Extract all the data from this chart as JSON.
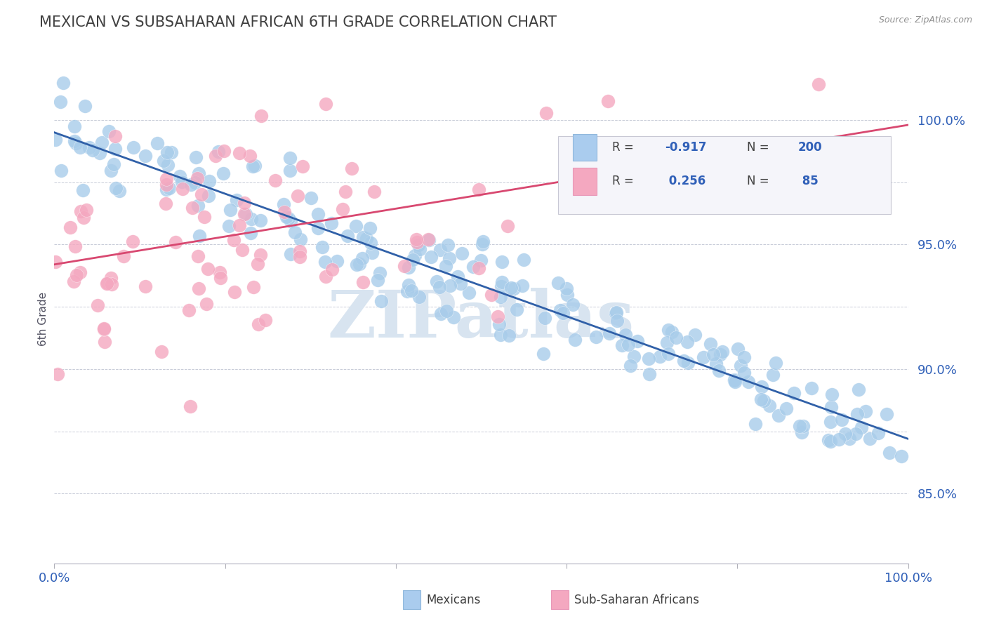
{
  "title": "MEXICAN VS SUBSAHARAN AFRICAN 6TH GRADE CORRELATION CHART",
  "source": "Source: ZipAtlas.com",
  "ylabel": "6th Grade",
  "blue_R": -0.917,
  "blue_N": 200,
  "pink_R": 0.256,
  "pink_N": 85,
  "blue_color": "#A8CCEA",
  "pink_color": "#F4A8C0",
  "blue_line_color": "#3060A8",
  "pink_line_color": "#D84870",
  "legend_blue_box": "#AACCEE",
  "legend_pink_box": "#F4A8C0",
  "title_color": "#404040",
  "axis_label_color": "#3060B8",
  "watermark_color": "#D8E4F0",
  "blue_trend_y0": 0.995,
  "blue_trend_y1": 0.872,
  "pink_trend_y0": 0.942,
  "pink_trend_y1": 0.998,
  "xlim": [
    0.0,
    1.0
  ],
  "ylim": [
    0.822,
    1.018
  ],
  "ytick_positions": [
    0.85,
    0.9,
    0.95,
    1.0
  ],
  "ytick_labels": [
    "85.0%",
    "90.0%",
    "95.0%",
    "100.0%"
  ],
  "xtick_positions": [
    0.0,
    0.2,
    0.4,
    0.6,
    0.8,
    1.0
  ],
  "xtick_labels_show": [
    "0.0%",
    "",
    "",
    "",
    "",
    "100.0%"
  ],
  "grid_y_values": [
    0.85,
    0.875,
    0.9,
    0.925,
    0.95,
    0.975,
    1.0
  ],
  "blue_noise_std": 0.009,
  "pink_noise_std": 0.022
}
